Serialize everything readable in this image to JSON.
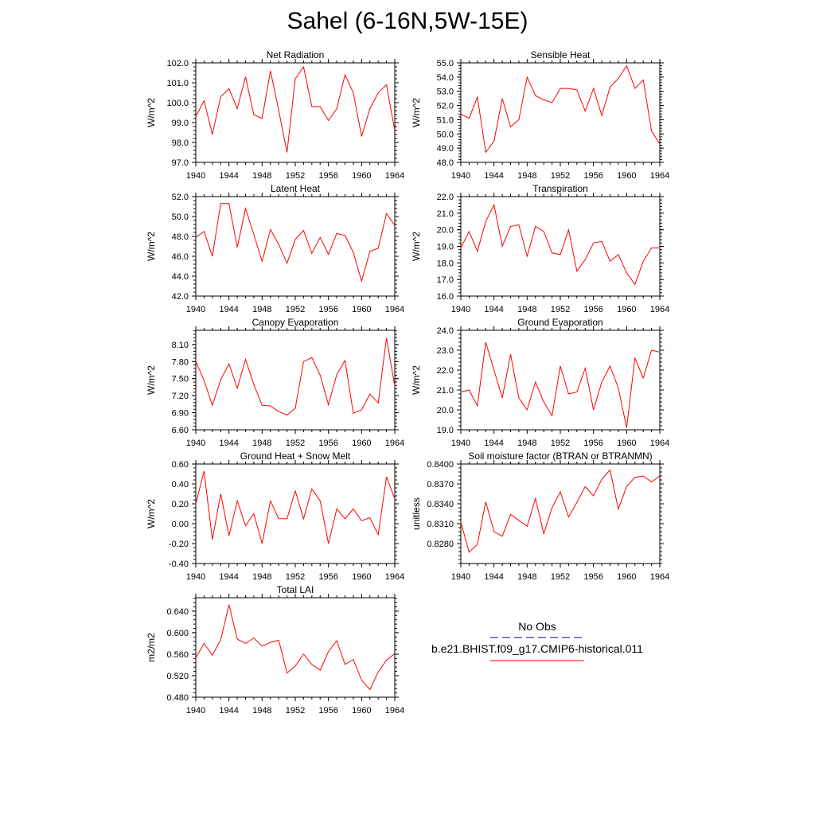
{
  "title": "Sahel (6-16N,5W-15E)",
  "colors": {
    "series": "#ff0000",
    "obs_line": "#00008b",
    "axis": "#000000"
  },
  "legend": {
    "obs_label": "No Obs",
    "model_label": "b.e21.BHIST.f09_g17.CMIP6-historical.011"
  },
  "chart_data": [
    {
      "type": "line",
      "title": "Net Radiation",
      "ylabel": "W/m^2",
      "ylim": [
        97.0,
        102.0
      ],
      "yticks": [
        97.0,
        98.0,
        99.0,
        100.0,
        101.0,
        102.0
      ],
      "ytick_labels": [
        "97.0",
        "98.0",
        "99.0",
        "100.0",
        "101.0",
        "102.0"
      ],
      "xlim": [
        1940,
        1964
      ],
      "xticks": [
        "1940",
        "1944",
        "1948",
        "1952",
        "1956",
        "1960",
        "1964"
      ],
      "x": [
        1940,
        1941,
        1942,
        1943,
        1944,
        1945,
        1946,
        1947,
        1948,
        1949,
        1950,
        1951,
        1952,
        1953,
        1954,
        1955,
        1956,
        1957,
        1958,
        1959,
        1960,
        1961,
        1962,
        1963,
        1964
      ],
      "y": [
        99.3,
        100.1,
        98.4,
        100.3,
        100.7,
        99.7,
        101.3,
        99.4,
        99.2,
        101.6,
        99.6,
        97.5,
        101.2,
        101.8,
        99.8,
        99.8,
        99.1,
        99.7,
        101.4,
        100.5,
        98.3,
        99.7,
        100.5,
        100.9,
        98.6
      ]
    },
    {
      "type": "line",
      "title": "Sensible Heat",
      "ylabel": "W/m^2",
      "ylim": [
        48.0,
        55.0
      ],
      "yticks": [
        48.0,
        49.0,
        50.0,
        51.0,
        52.0,
        53.0,
        54.0,
        55.0
      ],
      "ytick_labels": [
        "48.0",
        "49.0",
        "50.0",
        "51.0",
        "52.0",
        "53.0",
        "54.0",
        "55.0"
      ],
      "xlim": [
        1940,
        1964
      ],
      "xticks": [
        "1940",
        "1944",
        "1948",
        "1952",
        "1956",
        "1960",
        "1964"
      ],
      "x": [
        1940,
        1941,
        1942,
        1943,
        1944,
        1945,
        1946,
        1947,
        1948,
        1949,
        1950,
        1951,
        1952,
        1953,
        1954,
        1955,
        1956,
        1957,
        1958,
        1959,
        1960,
        1961,
        1962,
        1963,
        1964
      ],
      "y": [
        51.4,
        51.1,
        52.6,
        48.7,
        49.5,
        52.5,
        50.5,
        51.0,
        54.0,
        52.7,
        52.4,
        52.2,
        53.2,
        53.2,
        53.1,
        51.6,
        53.2,
        51.3,
        53.3,
        53.9,
        54.8,
        53.2,
        53.8,
        50.2,
        49.3
      ]
    },
    {
      "type": "line",
      "title": "Latent Heat",
      "ylabel": "W/m^2",
      "ylim": [
        42.0,
        52.0
      ],
      "yticks": [
        42.0,
        44.0,
        46.0,
        48.0,
        50.0,
        52.0
      ],
      "ytick_labels": [
        "42.0",
        "44.0",
        "46.0",
        "48.0",
        "50.0",
        "52.0"
      ],
      "xlim": [
        1940,
        1964
      ],
      "xticks": [
        "1940",
        "1944",
        "1948",
        "1952",
        "1956",
        "1960",
        "1964"
      ],
      "x": [
        1940,
        1941,
        1942,
        1943,
        1944,
        1945,
        1946,
        1947,
        1948,
        1949,
        1950,
        1951,
        1952,
        1953,
        1954,
        1955,
        1956,
        1957,
        1958,
        1959,
        1960,
        1961,
        1962,
        1963,
        1964
      ],
      "y": [
        47.9,
        48.5,
        46.0,
        51.3,
        51.3,
        46.9,
        50.8,
        48.2,
        45.5,
        48.7,
        47.2,
        45.3,
        47.7,
        48.6,
        46.3,
        47.9,
        46.2,
        48.3,
        48.1,
        46.4,
        43.5,
        46.5,
        46.8,
        50.3,
        49.1
      ]
    },
    {
      "type": "line",
      "title": "Transpiration",
      "ylabel": "W/m^2",
      "ylim": [
        16.0,
        22.0
      ],
      "yticks": [
        16.0,
        17.0,
        18.0,
        19.0,
        20.0,
        21.0,
        22.0
      ],
      "ytick_labels": [
        "16.0",
        "17.0",
        "18.0",
        "19.0",
        "20.0",
        "21.0",
        "22.0"
      ],
      "xlim": [
        1940,
        1964
      ],
      "xticks": [
        "1940",
        "1944",
        "1948",
        "1952",
        "1956",
        "1960",
        "1964"
      ],
      "x": [
        1940,
        1941,
        1942,
        1943,
        1944,
        1945,
        1946,
        1947,
        1948,
        1949,
        1950,
        1951,
        1952,
        1953,
        1954,
        1955,
        1956,
        1957,
        1958,
        1959,
        1960,
        1961,
        1962,
        1963,
        1964
      ],
      "y": [
        18.9,
        19.9,
        18.7,
        20.5,
        21.5,
        19.0,
        20.2,
        20.3,
        18.4,
        20.2,
        19.9,
        18.6,
        18.5,
        20.0,
        17.5,
        18.2,
        19.2,
        19.3,
        18.1,
        18.5,
        17.4,
        16.7,
        18.1,
        18.9,
        18.9
      ]
    },
    {
      "type": "line",
      "title": "Canopy Evaporation",
      "ylabel": "W/m^2",
      "ylim": [
        6.6,
        8.35
      ],
      "yticks": [
        6.6,
        6.9,
        7.2,
        7.5,
        7.8,
        8.1
      ],
      "ytick_labels": [
        "6.60",
        "6.90",
        "7.20",
        "7.50",
        "7.80",
        "8.10"
      ],
      "xlim": [
        1940,
        1964
      ],
      "xticks": [
        "1940",
        "1944",
        "1948",
        "1952",
        "1956",
        "1960",
        "1964"
      ],
      "x": [
        1940,
        1941,
        1942,
        1943,
        1944,
        1945,
        1946,
        1947,
        1948,
        1949,
        1950,
        1951,
        1952,
        1953,
        1954,
        1955,
        1956,
        1957,
        1958,
        1959,
        1960,
        1961,
        1962,
        1963,
        1964
      ],
      "y": [
        7.8,
        7.47,
        7.03,
        7.48,
        7.76,
        7.33,
        7.84,
        7.4,
        7.03,
        7.02,
        6.92,
        6.86,
        6.98,
        7.8,
        7.87,
        7.56,
        7.04,
        7.57,
        7.82,
        6.89,
        6.95,
        7.23,
        7.07,
        8.22,
        7.37
      ]
    },
    {
      "type": "line",
      "title": "Ground Evaporation",
      "ylabel": "W/m^2",
      "ylim": [
        19.0,
        24.0
      ],
      "yticks": [
        19.0,
        20.0,
        21.0,
        22.0,
        23.0,
        24.0
      ],
      "ytick_labels": [
        "19.0",
        "20.0",
        "21.0",
        "22.0",
        "23.0",
        "24.0"
      ],
      "xlim": [
        1940,
        1964
      ],
      "xticks": [
        "1940",
        "1944",
        "1948",
        "1952",
        "1956",
        "1960",
        "1964"
      ],
      "x": [
        1940,
        1941,
        1942,
        1943,
        1944,
        1945,
        1946,
        1947,
        1948,
        1949,
        1950,
        1951,
        1952,
        1953,
        1954,
        1955,
        1956,
        1957,
        1958,
        1959,
        1960,
        1961,
        1962,
        1963,
        1964
      ],
      "y": [
        20.9,
        21.0,
        20.2,
        23.4,
        22.0,
        20.6,
        22.8,
        20.6,
        20.0,
        21.4,
        20.4,
        19.7,
        22.2,
        20.8,
        20.9,
        22.1,
        20.0,
        21.4,
        22.2,
        21.1,
        19.1,
        22.6,
        21.6,
        23.0,
        22.9
      ]
    },
    {
      "type": "line",
      "title": "Ground Heat + Snow Melt",
      "ylabel": "W/m^2",
      "ylim": [
        -0.4,
        0.6
      ],
      "yticks": [
        -0.4,
        -0.2,
        0.0,
        0.2,
        0.4,
        0.6
      ],
      "ytick_labels": [
        "-0.40",
        "-0.20",
        "0.00",
        "0.20",
        "0.40",
        "0.60"
      ],
      "xlim": [
        1940,
        1964
      ],
      "xticks": [
        "1940",
        "1944",
        "1948",
        "1952",
        "1956",
        "1960",
        "1964"
      ],
      "x": [
        1940,
        1941,
        1942,
        1943,
        1944,
        1945,
        1946,
        1947,
        1948,
        1949,
        1950,
        1951,
        1952,
        1953,
        1954,
        1955,
        1956,
        1957,
        1958,
        1959,
        1960,
        1961,
        1962,
        1963,
        1964
      ],
      "y": [
        0.2,
        0.53,
        -0.16,
        0.3,
        -0.12,
        0.23,
        -0.02,
        0.1,
        -0.2,
        0.23,
        0.05,
        0.05,
        0.33,
        0.05,
        0.35,
        0.23,
        -0.2,
        0.15,
        0.05,
        0.15,
        0.03,
        0.06,
        -0.11,
        0.47,
        0.25
      ]
    },
    {
      "type": "line",
      "title": "Soil moisture factor (BTRAN or BTRANMN)",
      "ylabel": "unitless",
      "ylim": [
        0.825,
        0.84
      ],
      "yticks": [
        0.828,
        0.831,
        0.834,
        0.837,
        0.84
      ],
      "ytick_labels": [
        "0.8280",
        "0.8310",
        "0.8340",
        "0.8370",
        "0.8400"
      ],
      "xlim": [
        1940,
        1964
      ],
      "xticks": [
        "1940",
        "1944",
        "1948",
        "1952",
        "1956",
        "1960",
        "1964"
      ],
      "x": [
        1940,
        1941,
        1942,
        1943,
        1944,
        1945,
        1946,
        1947,
        1948,
        1949,
        1950,
        1951,
        1952,
        1953,
        1954,
        1955,
        1956,
        1957,
        1958,
        1959,
        1960,
        1961,
        1962,
        1963,
        1964
      ],
      "y": [
        0.8312,
        0.8267,
        0.8279,
        0.8343,
        0.8298,
        0.8291,
        0.8324,
        0.8315,
        0.8306,
        0.8348,
        0.8295,
        0.8334,
        0.8358,
        0.832,
        0.8342,
        0.8366,
        0.8352,
        0.8377,
        0.8391,
        0.8332,
        0.8366,
        0.838,
        0.8382,
        0.8373,
        0.8382
      ]
    },
    {
      "type": "line",
      "title": "Total LAI",
      "ylabel": "m2/m2",
      "ylim": [
        0.48,
        0.665
      ],
      "yticks": [
        0.48,
        0.52,
        0.56,
        0.6,
        0.64
      ],
      "ytick_labels": [
        "0.480",
        "0.520",
        "0.560",
        "0.600",
        "0.640"
      ],
      "xlim": [
        1940,
        1964
      ],
      "xticks": [
        "1940",
        "1944",
        "1948",
        "1952",
        "1956",
        "1960",
        "1964"
      ],
      "x": [
        1940,
        1941,
        1942,
        1943,
        1944,
        1945,
        1946,
        1947,
        1948,
        1949,
        1950,
        1951,
        1952,
        1953,
        1954,
        1955,
        1956,
        1957,
        1958,
        1959,
        1960,
        1961,
        1962,
        1963,
        1964
      ],
      "y": [
        0.553,
        0.58,
        0.558,
        0.587,
        0.652,
        0.588,
        0.58,
        0.59,
        0.575,
        0.582,
        0.586,
        0.525,
        0.538,
        0.56,
        0.541,
        0.53,
        0.565,
        0.585,
        0.541,
        0.55,
        0.512,
        0.494,
        0.527,
        0.549,
        0.561
      ]
    }
  ]
}
